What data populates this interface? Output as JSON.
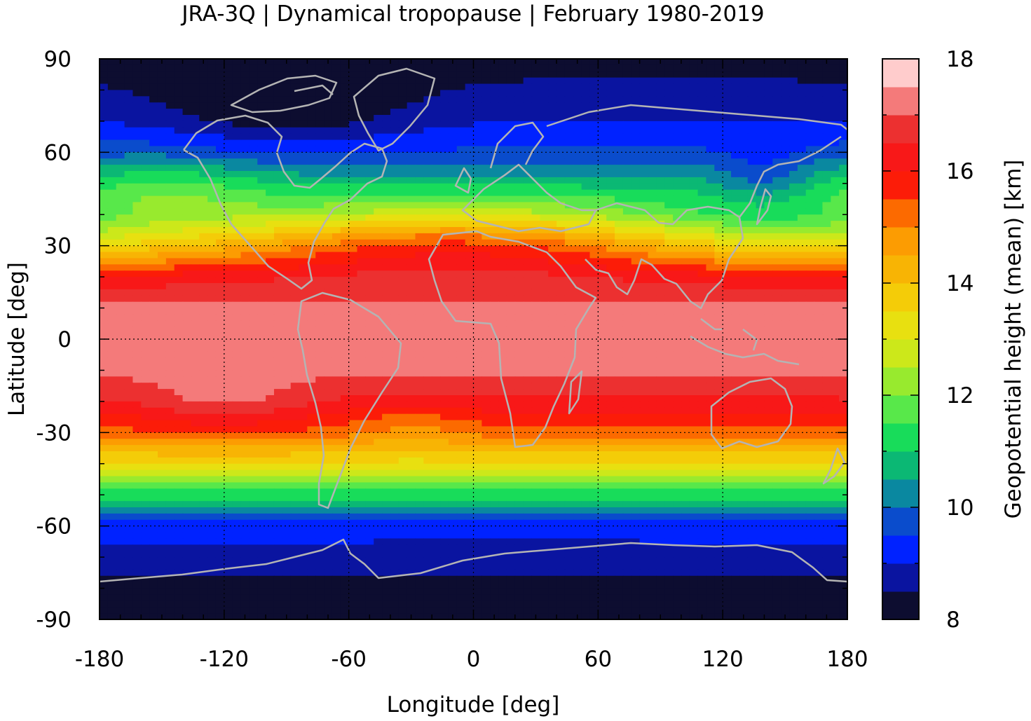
{
  "title": "JRA-3Q | Dynamical tropopause | February 1980-2019",
  "chart_data": {
    "type": "heatmap",
    "projection": "equirectangular",
    "title": "JRA-3Q | Dynamical tropopause | February 1980-2019",
    "xlabel": "Longitude [deg]",
    "ylabel": "Latitude [deg]",
    "xlim": [
      -180,
      180
    ],
    "ylim": [
      -90,
      90
    ],
    "x_ticks": [
      "-180",
      "-120",
      "-60",
      "0",
      "60",
      "120",
      "180"
    ],
    "y_ticks": [
      "90",
      "60",
      "30",
      "0",
      "-30",
      "-60",
      "-90"
    ],
    "x_tick_values": [
      -180,
      -120,
      -60,
      0,
      60,
      120,
      180
    ],
    "y_tick_values": [
      90,
      60,
      30,
      0,
      -30,
      -60,
      -90
    ],
    "grid": true,
    "coastlines": true,
    "colorbar": {
      "label": "Geopotential height (mean) [km]",
      "range": [
        8,
        18
      ],
      "ticks": [
        "8",
        "10",
        "12",
        "14",
        "16",
        "18"
      ],
      "tick_values": [
        8,
        10,
        12,
        14,
        16,
        18
      ],
      "step": 0.5,
      "colors": [
        "#0d0d30",
        "#0a14a0",
        "#0022ff",
        "#0a4ccc",
        "#0a88a0",
        "#0bb874",
        "#18dc5a",
        "#58e84a",
        "#98ea2e",
        "#cce81a",
        "#e8e010",
        "#f4cc08",
        "#f8b404",
        "#fc9c02",
        "#fc6a00",
        "#fc1c08",
        "#f81818",
        "#ec3030",
        "#f47a7a",
        "#ffcccc"
      ]
    },
    "zonal_profile_approx": {
      "latitudes": [
        -90,
        -80,
        -70,
        -60,
        -50,
        -40,
        -30,
        -20,
        -10,
        0,
        10,
        20,
        30,
        40,
        50,
        60,
        70,
        80,
        90
      ],
      "heights_km": [
        8.2,
        8.4,
        8.7,
        9.3,
        11.2,
        13.4,
        15.3,
        16.4,
        17.1,
        17.4,
        17.1,
        16.4,
        14.5,
        12.0,
        10.8,
        9.6,
        9.0,
        8.6,
        8.3
      ]
    }
  }
}
